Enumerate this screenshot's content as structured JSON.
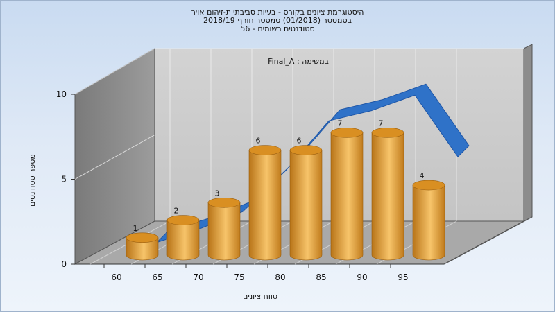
{
  "title": {
    "line1": "היסטוגרמת ציונים בקורס - בעיות סביבתיות-זיהום אויר",
    "line2": "בסמסטר  (01/2018)  סמסטר חורף 2018/19",
    "line3": "סטודנטים רשומים - 56"
  },
  "chart_data": {
    "type": "bar",
    "title": "היסטוגרמת ציונים בקורס - בעיות סביבתיות-זיהום אויר",
    "annotation": "במשימה : Final_A",
    "xlabel": "טווח ציונים",
    "ylabel": "מספר סטודנטים",
    "categories": [
      "60",
      "65",
      "70",
      "75",
      "80",
      "85",
      "90",
      "95"
    ],
    "values": [
      1,
      2,
      3,
      6,
      6,
      7,
      7,
      4
    ],
    "ylim": [
      0,
      10
    ],
    "yticks": [
      0,
      5,
      10
    ],
    "grid": true,
    "trend_series_values": [
      0.5,
      1.3,
      2.3,
      4.7,
      7.6,
      8.2,
      9.1,
      5.5
    ],
    "colors": {
      "bar": "#e8a43c",
      "bar_top": "#d98f22",
      "trend": "#2f72c8",
      "back_wall": "#c8c8c8",
      "side_wall": "#7f7f7f",
      "floor": "#9a9a9a"
    }
  }
}
